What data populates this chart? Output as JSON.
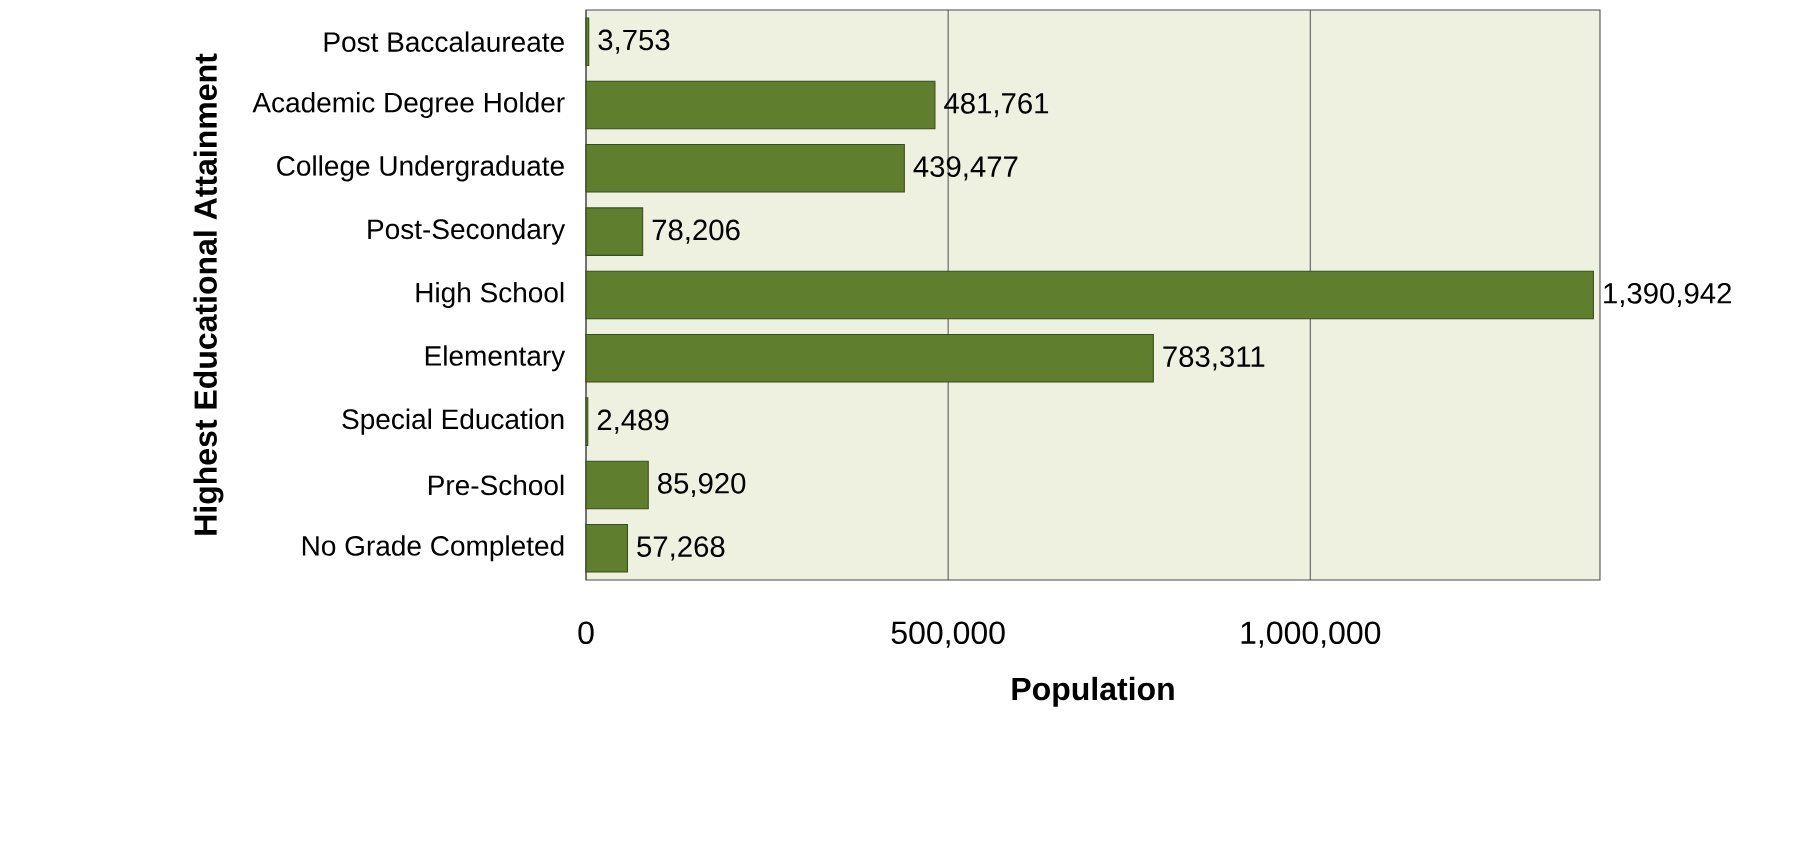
{
  "chart_data": {
    "type": "bar",
    "orientation": "horizontal",
    "xlabel": "Population",
    "ylabel": "Highest Educational  Attainment",
    "categories": [
      "Post Baccalaureate",
      "Academic Degree Holder",
      "College Undergraduate",
      "Post-Secondary",
      "High School",
      "Elementary",
      "Special Education",
      "Pre-School",
      "No Grade Completed"
    ],
    "values": [
      3753,
      481761,
      439477,
      78206,
      1390942,
      783311,
      2489,
      85920,
      57268
    ],
    "value_labels": [
      "3,753",
      "481,761",
      "439,477",
      "78,206",
      "1,390,942",
      "783,311",
      "2,489",
      "85,920",
      "57,268"
    ],
    "color": "#5f7f2f",
    "xlim": [
      0,
      1400000
    ],
    "xticks": [
      {
        "value": 0,
        "label": "0"
      },
      {
        "value": 500000,
        "label": "500,000"
      },
      {
        "value": 1000000,
        "label": "1,000,000"
      }
    ],
    "grid": "x"
  }
}
